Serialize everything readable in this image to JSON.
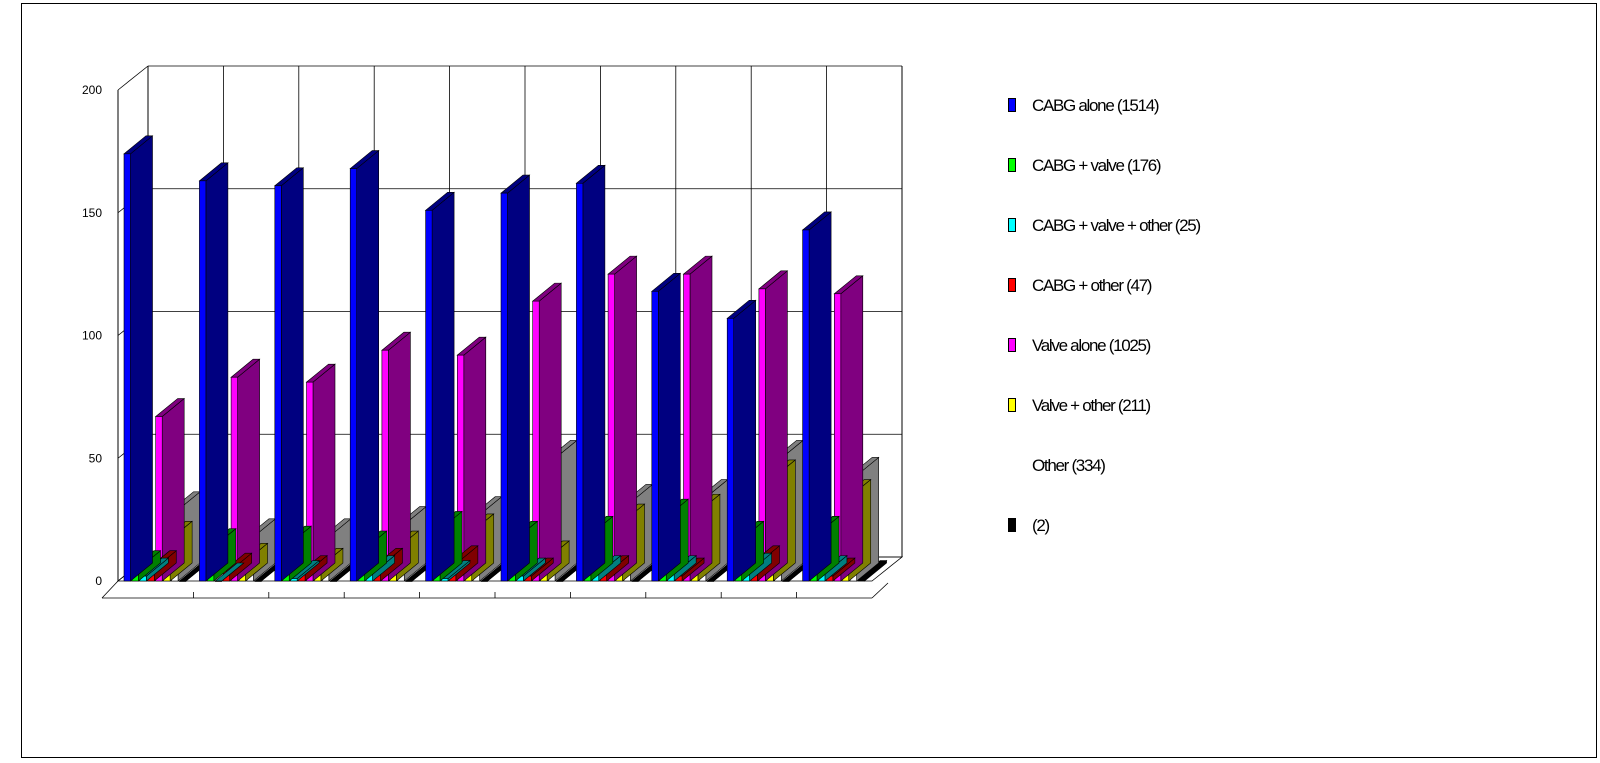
{
  "chart_data": {
    "type": "bar",
    "title": "",
    "xlabel": "",
    "ylabel": "",
    "ylim": [
      0,
      200
    ],
    "yticks": [
      0,
      50,
      100,
      150,
      200
    ],
    "grid": true,
    "legend_position": "right",
    "categories": [
      "",
      "",
      "",
      "",
      "",
      "",
      "",
      "",
      "",
      ""
    ],
    "series": [
      {
        "name": "CABG alone (1514)",
        "color": "#0000ff",
        "side_color": "#000080",
        "values": [
          174,
          163,
          161,
          168,
          151,
          158,
          162,
          118,
          107,
          143
        ]
      },
      {
        "name": "CABG + valve (176)",
        "color": "#00ff00",
        "side_color": "#008000",
        "values": [
          5,
          14,
          15,
          13,
          21,
          17,
          19,
          26,
          17,
          19
        ]
      },
      {
        "name": "CABG + valve + other (25)",
        "color": "#00ffff",
        "side_color": "#008080",
        "values": [
          2,
          0,
          1,
          3,
          1,
          2,
          3,
          3,
          4,
          3
        ]
      },
      {
        "name": "CABG + other (47)",
        "color": "#ff0000",
        "side_color": "#800000",
        "values": [
          5,
          4,
          3,
          6,
          7,
          2,
          3,
          2,
          7,
          2
        ]
      },
      {
        "name": "Valve alone (1025)",
        "color": "#ff00ff",
        "side_color": "#800080",
        "values": [
          67,
          83,
          81,
          94,
          92,
          114,
          125,
          125,
          119,
          117
        ]
      },
      {
        "name": "Valve + other (211)",
        "color": "#ffff00",
        "side_color": "#808000",
        "values": [
          17,
          8,
          6,
          13,
          20,
          9,
          24,
          28,
          42,
          34
        ]
      },
      {
        "name": "Other (334)",
        "color": "#ffffff",
        "side_color": "#808080",
        "values": [
          29,
          18,
          18,
          23,
          27,
          50,
          32,
          34,
          50,
          43
        ]
      },
      {
        "name": "(2)",
        "color": "#000000",
        "side_color": "#000000",
        "values": [
          0,
          0,
          0,
          0,
          0,
          0,
          0,
          0,
          0,
          1
        ]
      }
    ]
  },
  "legend": {
    "items": [
      {
        "label": "CABG alone (1514)",
        "color": "#0000ff",
        "swatch": true
      },
      {
        "label": "CABG + valve (176)",
        "color": "#00ff00",
        "swatch": true
      },
      {
        "label": "CABG + valve + other (25)",
        "color": "#00ffff",
        "swatch": true
      },
      {
        "label": "CABG + other (47)",
        "color": "#ff0000",
        "swatch": true
      },
      {
        "label": "Valve alone (1025)",
        "color": "#ff00ff",
        "swatch": true
      },
      {
        "label": "Valve + other (211)",
        "color": "#ffff00",
        "swatch": true
      },
      {
        "label": "Other (334)",
        "color": "#ffffff",
        "swatch": false
      },
      {
        "label": "(2)",
        "color": "#000000",
        "swatch": true
      }
    ]
  }
}
